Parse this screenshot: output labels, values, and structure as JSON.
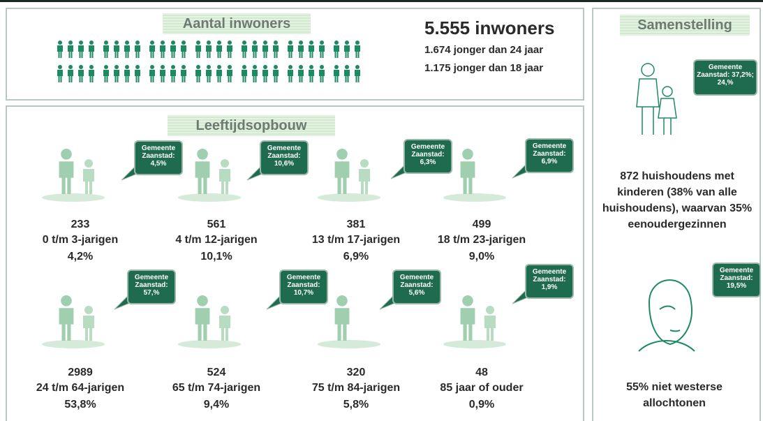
{
  "population": {
    "title": "Aantal inwoners",
    "total": "5.555 inwoners",
    "lines": [
      "1.674 jonger dan 24 jaar",
      "1.175 jonger dan 18 jaar"
    ]
  },
  "age": {
    "title": "Leeftijdsopbouw",
    "groups": [
      {
        "count": "233",
        "label": "0 t/m 3-jarigen",
        "pct": "4,2%",
        "callout": [
          "Gemeente",
          "Zaanstad:",
          "4,5%"
        ]
      },
      {
        "count": "561",
        "label": "4 t/m 12-jarigen",
        "pct": "10,1%",
        "callout": [
          "Gemeente",
          "Zaanstad:",
          "10,6%"
        ]
      },
      {
        "count": "381",
        "label": "13 t/m 17-jarigen",
        "pct": "6,9%",
        "callout": [
          "Gemeente",
          "Zaanstad:",
          "6,3%"
        ]
      },
      {
        "count": "499",
        "label": "18 t/m 23-jarigen",
        "pct": "9,0%",
        "callout": [
          "Gemeente",
          "Zaanstad:",
          "6,9%"
        ]
      },
      {
        "count": "2989",
        "label": "24 t/m 64-jarigen",
        "pct": "53,8%",
        "callout": [
          "Gemeente",
          "Zaanstad:",
          "57,%"
        ]
      },
      {
        "count": "524",
        "label": "65 t/m 74-jarigen",
        "pct": "9,4%",
        "callout": [
          "Gemeente",
          "Zaanstad:",
          "10,7%"
        ]
      },
      {
        "count": "320",
        "label": "75 t/m 84-jarigen",
        "pct": "5,8%",
        "callout": [
          "Gemeente",
          "Zaanstad:",
          "5,6%"
        ]
      },
      {
        "count": "48",
        "label": "85 jaar of ouder",
        "pct": "0,9%",
        "callout": [
          "Gemeente",
          "Zaanstad:",
          "1,9%"
        ]
      }
    ]
  },
  "composition": {
    "title": "Samenstelling",
    "households_callout": [
      "Gemeente",
      "Zaanstad: 37,2%;",
      "24,%"
    ],
    "households_text": "872 huishoudens met kinderen (38% van alle huishoudens), waarvan 35% eenoudergezinnen",
    "origin_callout": [
      "Gemeente",
      "Zaanstad:",
      "19,5%"
    ],
    "origin_text": "55% niet westerse allochtonen"
  }
}
